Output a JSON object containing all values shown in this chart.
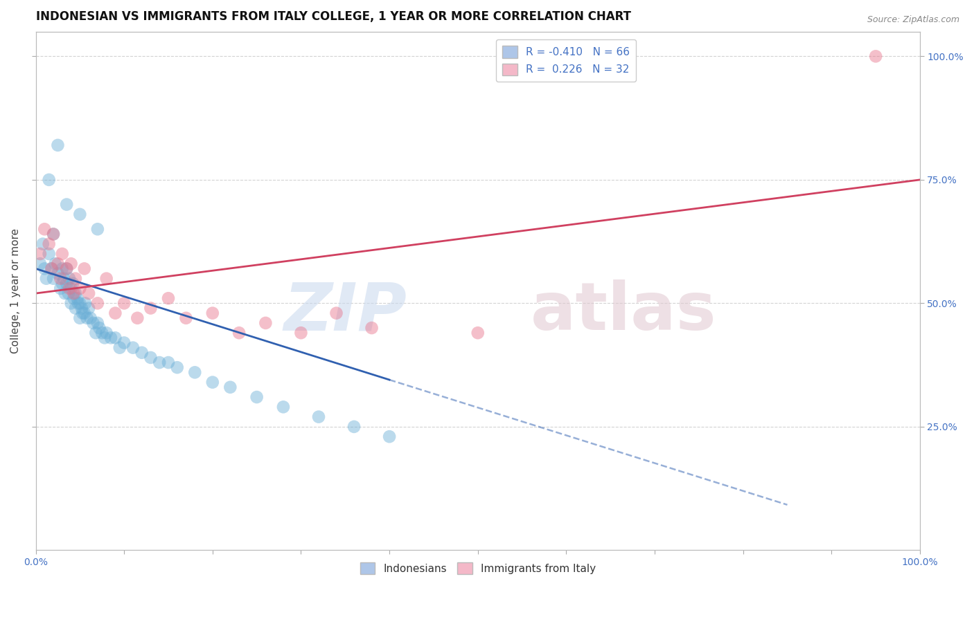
{
  "title": "INDONESIAN VS IMMIGRANTS FROM ITALY COLLEGE, 1 YEAR OR MORE CORRELATION CHART",
  "source": "Source: ZipAtlas.com",
  "ylabel": "College, 1 year or more",
  "xlim": [
    0.0,
    1.0
  ],
  "ylim": [
    0.0,
    1.05
  ],
  "ytick_values": [
    0.25,
    0.5,
    0.75,
    1.0
  ],
  "legend_labels_bottom": [
    "Indonesians",
    "Immigrants from Italy"
  ],
  "blue_color": "#6aaed6",
  "pink_color": "#e8738a",
  "blue_line_color": "#3060b0",
  "pink_line_color": "#d04060",
  "blue_fill": "#aec6e8",
  "pink_fill": "#f4b8c8",
  "blue_scatter_x": [
    0.005,
    0.008,
    0.01,
    0.012,
    0.015,
    0.018,
    0.02,
    0.02,
    0.022,
    0.025,
    0.028,
    0.03,
    0.03,
    0.032,
    0.033,
    0.035,
    0.035,
    0.037,
    0.038,
    0.04,
    0.04,
    0.042,
    0.043,
    0.045,
    0.045,
    0.047,
    0.048,
    0.05,
    0.05,
    0.052,
    0.053,
    0.055,
    0.056,
    0.058,
    0.06,
    0.062,
    0.065,
    0.068,
    0.07,
    0.072,
    0.075,
    0.078,
    0.08,
    0.085,
    0.09,
    0.095,
    0.1,
    0.11,
    0.12,
    0.13,
    0.14,
    0.15,
    0.16,
    0.18,
    0.2,
    0.22,
    0.25,
    0.28,
    0.32,
    0.36,
    0.4,
    0.015,
    0.025,
    0.035,
    0.05,
    0.07
  ],
  "blue_scatter_y": [
    0.58,
    0.62,
    0.57,
    0.55,
    0.6,
    0.57,
    0.64,
    0.55,
    0.58,
    0.56,
    0.53,
    0.57,
    0.54,
    0.55,
    0.52,
    0.54,
    0.57,
    0.52,
    0.55,
    0.53,
    0.5,
    0.54,
    0.51,
    0.52,
    0.49,
    0.51,
    0.5,
    0.5,
    0.47,
    0.49,
    0.48,
    0.48,
    0.5,
    0.47,
    0.49,
    0.47,
    0.46,
    0.44,
    0.46,
    0.45,
    0.44,
    0.43,
    0.44,
    0.43,
    0.43,
    0.41,
    0.42,
    0.41,
    0.4,
    0.39,
    0.38,
    0.38,
    0.37,
    0.36,
    0.34,
    0.33,
    0.31,
    0.29,
    0.27,
    0.25,
    0.23,
    0.75,
    0.82,
    0.7,
    0.68,
    0.65
  ],
  "pink_scatter_x": [
    0.005,
    0.01,
    0.015,
    0.018,
    0.02,
    0.025,
    0.028,
    0.03,
    0.035,
    0.038,
    0.04,
    0.043,
    0.045,
    0.05,
    0.055,
    0.06,
    0.07,
    0.08,
    0.09,
    0.1,
    0.115,
    0.13,
    0.15,
    0.17,
    0.2,
    0.23,
    0.26,
    0.3,
    0.34,
    0.38,
    0.5,
    0.95
  ],
  "pink_scatter_y": [
    0.6,
    0.65,
    0.62,
    0.57,
    0.64,
    0.58,
    0.55,
    0.6,
    0.57,
    0.53,
    0.58,
    0.52,
    0.55,
    0.53,
    0.57,
    0.52,
    0.5,
    0.55,
    0.48,
    0.5,
    0.47,
    0.49,
    0.51,
    0.47,
    0.48,
    0.44,
    0.46,
    0.44,
    0.48,
    0.45,
    0.44,
    1.0
  ],
  "background_color": "#ffffff",
  "grid_color": "#c8c8c8",
  "title_fontsize": 12,
  "axis_label_fontsize": 11,
  "blue_line_x0": 0.0,
  "blue_line_y0": 0.57,
  "blue_line_x1": 0.4,
  "blue_line_y1": 0.345,
  "pink_line_x0": 0.0,
  "pink_line_y0": 0.52,
  "pink_line_x1": 1.0,
  "pink_line_y1": 0.75
}
